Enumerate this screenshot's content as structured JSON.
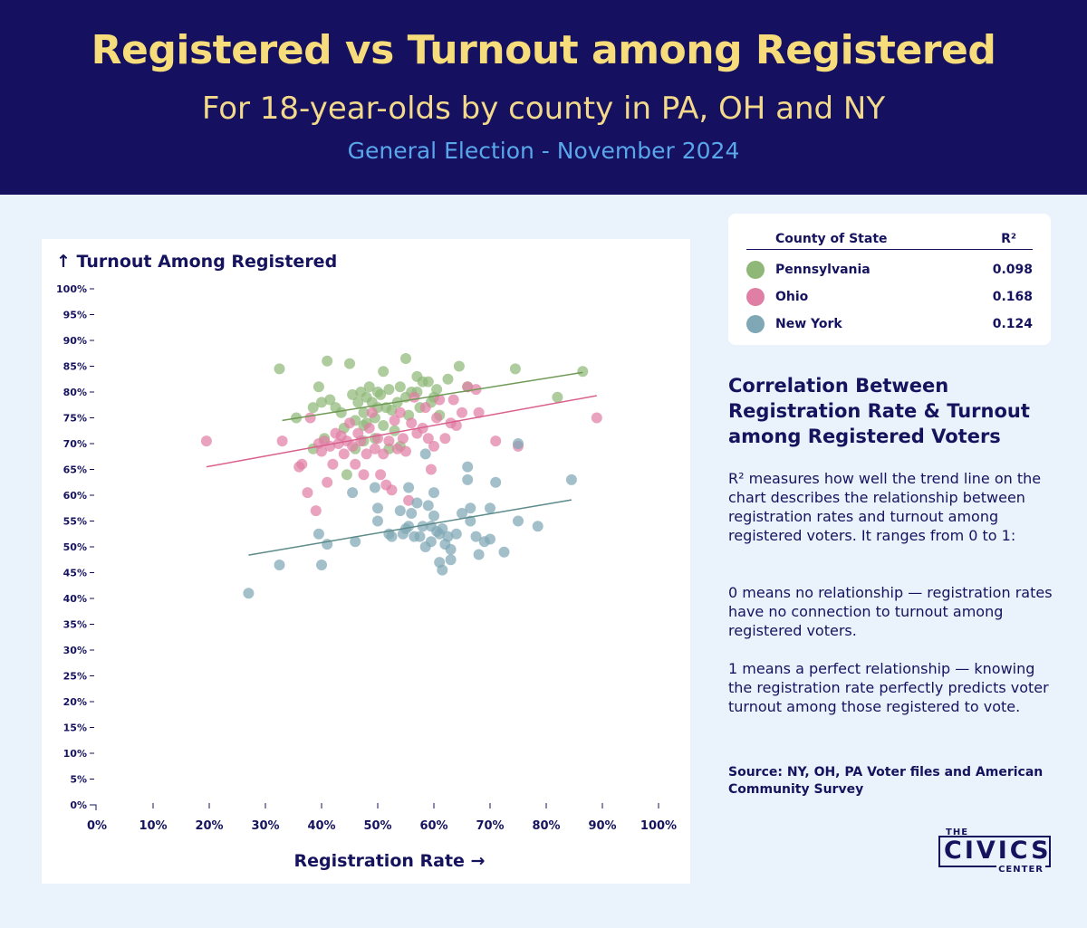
{
  "header": {
    "title": "Registered vs Turnout among Registered",
    "subtitle": "For 18-year-olds by county in PA, OH and NY",
    "subtitle2": "General Election - November 2024"
  },
  "legend": {
    "col_name": "County of State",
    "col_r2": "R²",
    "rows": [
      {
        "name": "Pennsylvania",
        "r2": "0.098",
        "color": "#8fb878"
      },
      {
        "name": "Ohio",
        "r2": "0.168",
        "color": "#e07fa5"
      },
      {
        "name": "New York",
        "r2": "0.124",
        "color": "#7fa7b5"
      }
    ]
  },
  "side": {
    "heading": "Correlation Between Registration Rate & Turnout among Registered Voters",
    "para1": "R² measures how well the trend line on the chart describes the relationship between registration rates and turnout among registered voters. It ranges from 0 to 1:",
    "para2": "0 means no relationship — registration rates have no connection to turnout among registered voters.",
    "para3": "1 means a perfect relationship — knowing the registration rate perfectly predicts voter turnout among those registered to vote.",
    "source": "Source: NY, OH, PA Voter files and American Community Survey"
  },
  "logo": {
    "the": "THE",
    "name": "CIVICS",
    "center": "CENTER"
  },
  "chart_data": {
    "type": "scatter",
    "xlabel": "Registration Rate →",
    "ylabel": "↑ Turnout Among Registered",
    "xlim": [
      0,
      100
    ],
    "ylim": [
      0,
      100
    ],
    "x_ticks": [
      "0%",
      "10%",
      "20%",
      "30%",
      "40%",
      "50%",
      "60%",
      "70%",
      "80%",
      "90%",
      "100%"
    ],
    "y_ticks": [
      "0%",
      "5%",
      "10%",
      "15%",
      "20%",
      "25%",
      "30%",
      "35%",
      "40%",
      "45%",
      "50%",
      "55%",
      "60%",
      "65%",
      "70%",
      "75%",
      "80%",
      "85%",
      "90%",
      "95%",
      "100%"
    ],
    "series": [
      {
        "name": "Pennsylvania",
        "color": "#8fb878",
        "trend": [
          [
            33,
            74.5
          ],
          [
            86.5,
            83.8
          ]
        ],
        "points": [
          [
            32.5,
            84.5
          ],
          [
            35.5,
            75
          ],
          [
            38.5,
            77
          ],
          [
            39.5,
            81
          ],
          [
            40,
            78
          ],
          [
            40.5,
            71
          ],
          [
            41,
            86
          ],
          [
            41.5,
            78.5
          ],
          [
            42.5,
            77
          ],
          [
            43.5,
            76
          ],
          [
            44,
            73
          ],
          [
            44.5,
            64
          ],
          [
            45,
            85.5
          ],
          [
            45.5,
            79.5
          ],
          [
            46,
            74.5
          ],
          [
            46,
            69
          ],
          [
            46.5,
            78
          ],
          [
            47,
            80
          ],
          [
            47.5,
            76
          ],
          [
            47.5,
            73.5
          ],
          [
            48,
            79
          ],
          [
            48,
            74
          ],
          [
            48.5,
            81
          ],
          [
            49,
            78
          ],
          [
            49.5,
            75
          ],
          [
            49.5,
            71
          ],
          [
            50,
            80
          ],
          [
            50,
            77
          ],
          [
            50.5,
            79.5
          ],
          [
            51,
            84
          ],
          [
            51,
            73.5
          ],
          [
            51.5,
            77
          ],
          [
            52,
            80.5
          ],
          [
            52.5,
            76.5
          ],
          [
            53,
            72.5
          ],
          [
            53.5,
            78
          ],
          [
            54,
            81
          ],
          [
            54,
            69.5
          ],
          [
            55,
            86.5
          ],
          [
            55,
            79
          ],
          [
            55.5,
            75.5
          ],
          [
            56,
            80
          ],
          [
            57,
            80
          ],
          [
            57,
            83
          ],
          [
            57.5,
            77
          ],
          [
            58,
            82
          ],
          [
            59,
            82
          ],
          [
            59.5,
            78
          ],
          [
            60,
            79
          ],
          [
            60.5,
            80.5
          ],
          [
            61,
            75.5
          ],
          [
            62.5,
            82.5
          ],
          [
            64.5,
            85
          ],
          [
            66,
            81
          ],
          [
            74.5,
            84.5
          ],
          [
            82,
            79
          ],
          [
            86.5,
            84
          ],
          [
            38.5,
            69
          ],
          [
            47.5,
            70.5
          ],
          [
            52,
            69
          ]
        ]
      },
      {
        "name": "Ohio",
        "color": "#e07fa5",
        "trend": [
          [
            19.5,
            65.5
          ],
          [
            89,
            79.3
          ]
        ],
        "points": [
          [
            19.5,
            70.5
          ],
          [
            33,
            70.5
          ],
          [
            36,
            65.5
          ],
          [
            36.5,
            66
          ],
          [
            37.5,
            60.5
          ],
          [
            38,
            75
          ],
          [
            39,
            57
          ],
          [
            39.5,
            70
          ],
          [
            40,
            68.5
          ],
          [
            40.5,
            70.5
          ],
          [
            41,
            62.5
          ],
          [
            41.5,
            69.5
          ],
          [
            42,
            66
          ],
          [
            42.5,
            72
          ],
          [
            43,
            70
          ],
          [
            43.5,
            71.5
          ],
          [
            44,
            68
          ],
          [
            44.5,
            70.5
          ],
          [
            45,
            74
          ],
          [
            45.5,
            69.5
          ],
          [
            46,
            66
          ],
          [
            46.5,
            72
          ],
          [
            47,
            70.5
          ],
          [
            47.5,
            64
          ],
          [
            48,
            68
          ],
          [
            48.5,
            73
          ],
          [
            49,
            76
          ],
          [
            49.5,
            69
          ],
          [
            50,
            71
          ],
          [
            50.5,
            64
          ],
          [
            51,
            68
          ],
          [
            51.5,
            62
          ],
          [
            52,
            70.5
          ],
          [
            52.5,
            61
          ],
          [
            53,
            74.5
          ],
          [
            53.5,
            69
          ],
          [
            54,
            76
          ],
          [
            54.5,
            71
          ],
          [
            55,
            68.5
          ],
          [
            55.5,
            59
          ],
          [
            56,
            74
          ],
          [
            56.5,
            79
          ],
          [
            57,
            72
          ],
          [
            58,
            73
          ],
          [
            58.5,
            77
          ],
          [
            59,
            71
          ],
          [
            59.5,
            65
          ],
          [
            60,
            69.5
          ],
          [
            60.5,
            75
          ],
          [
            61,
            78.5
          ],
          [
            62,
            71
          ],
          [
            63,
            74
          ],
          [
            63.5,
            78.5
          ],
          [
            64,
            73.5
          ],
          [
            65,
            76
          ],
          [
            66,
            81
          ],
          [
            67.5,
            80.5
          ],
          [
            68,
            76
          ],
          [
            71,
            70.5
          ],
          [
            75,
            69.5
          ],
          [
            89,
            75
          ]
        ]
      },
      {
        "name": "New York",
        "color": "#7fa7b5",
        "trend": [
          [
            27,
            48.4
          ],
          [
            84.5,
            59.1
          ]
        ],
        "points": [
          [
            27,
            41
          ],
          [
            32.5,
            46.5
          ],
          [
            39.5,
            52.5
          ],
          [
            40,
            46.5
          ],
          [
            41,
            50.5
          ],
          [
            45.5,
            60.5
          ],
          [
            46,
            51
          ],
          [
            49.5,
            61.5
          ],
          [
            50,
            57.5
          ],
          [
            50,
            55
          ],
          [
            52,
            52.5
          ],
          [
            52.5,
            52
          ],
          [
            54,
            57
          ],
          [
            54.5,
            52.5
          ],
          [
            55,
            53.5
          ],
          [
            55.5,
            61.5
          ],
          [
            55.5,
            54
          ],
          [
            56,
            56.5
          ],
          [
            56.5,
            52
          ],
          [
            57,
            58.5
          ],
          [
            57.5,
            52
          ],
          [
            58,
            54
          ],
          [
            58.5,
            50
          ],
          [
            58.5,
            68
          ],
          [
            59,
            58
          ],
          [
            59.5,
            51
          ],
          [
            59.5,
            54
          ],
          [
            60,
            56
          ],
          [
            60,
            60.5
          ],
          [
            60.5,
            53
          ],
          [
            61,
            52.5
          ],
          [
            61,
            47
          ],
          [
            61.5,
            45.5
          ],
          [
            61.5,
            53.5
          ],
          [
            62,
            50.5
          ],
          [
            62.5,
            52
          ],
          [
            63,
            49.5
          ],
          [
            63,
            47.5
          ],
          [
            64,
            52.5
          ],
          [
            65,
            56.5
          ],
          [
            66,
            63
          ],
          [
            66,
            65.5
          ],
          [
            66.5,
            57.5
          ],
          [
            66.5,
            55
          ],
          [
            67.5,
            52
          ],
          [
            68,
            48.5
          ],
          [
            69,
            51
          ],
          [
            70,
            51.5
          ],
          [
            70,
            57.5
          ],
          [
            71,
            62.5
          ],
          [
            72.5,
            49
          ],
          [
            75,
            55
          ],
          [
            75,
            70
          ],
          [
            78.5,
            54
          ],
          [
            84.5,
            63
          ]
        ]
      }
    ]
  }
}
